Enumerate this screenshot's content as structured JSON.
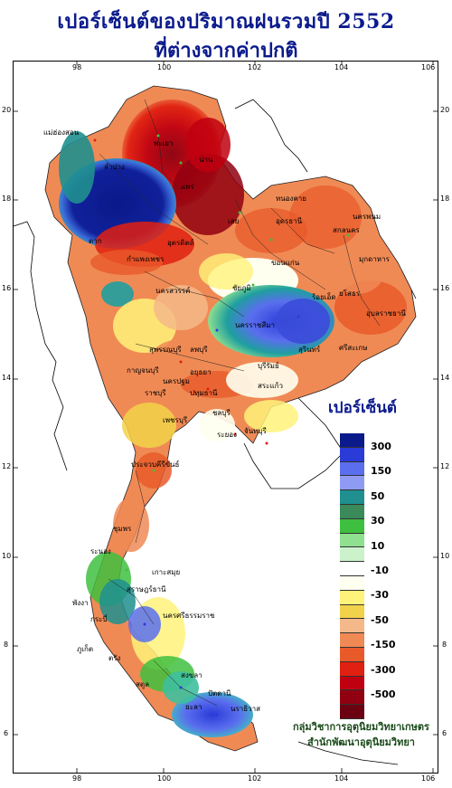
{
  "title_line1": "เปอร์เซ็นต์ของปริมาณฝนรวมปี 2552",
  "title_line2": "ที่ต่างจากค่าปกติ",
  "legend": {
    "title": "เปอร์เซ็นต์",
    "classes": [
      {
        "color": "#0a1a8a"
      },
      {
        "color": "#2a3bd8"
      },
      {
        "color": "#5a6eee"
      },
      {
        "color": "#8f9bf2"
      },
      {
        "color": "#1f8f8f"
      },
      {
        "color": "#3a8a5a"
      },
      {
        "color": "#3fbf3f"
      },
      {
        "color": "#8fe08f"
      },
      {
        "color": "#ccf2cc"
      },
      {
        "color": "#ffffff"
      },
      {
        "color": "#fffff0"
      },
      {
        "color": "#fff27a"
      },
      {
        "color": "#f2d24a"
      },
      {
        "color": "#f5b88a"
      },
      {
        "color": "#f08a55"
      },
      {
        "color": "#e85a2a"
      },
      {
        "color": "#e02010"
      },
      {
        "color": "#c00010"
      },
      {
        "color": "#900010"
      },
      {
        "color": "#6a0010"
      }
    ],
    "labels": [
      "300",
      "150",
      "50",
      "30",
      "10",
      "-10",
      "-30",
      "-50",
      "-150",
      "-300",
      "-500"
    ]
  },
  "axis": {
    "top": [
      "98",
      "100",
      "102",
      "104",
      "106"
    ],
    "bottom": [
      "98",
      "100",
      "102",
      "104",
      "106"
    ],
    "left": [
      "20",
      "18",
      "16",
      "14",
      "12",
      "10",
      "8",
      "6"
    ],
    "right": [
      "20",
      "18",
      "16",
      "14",
      "12",
      "10",
      "8",
      "6"
    ]
  },
  "credit": {
    "line1": "กลุ่มวิชาการอุตุนิยมวิทยาเกษตร",
    "line2": "สำนักพัฒนาอุตุนิยมวิทยา"
  },
  "places": [
    "แม่ฮ่องสอน",
    "น่าน",
    "พะเยา",
    "ลำปาง",
    "แพร่",
    "หนองคาย",
    "อุดรธานี",
    "สกลนคร",
    "นครพนม",
    "มุกดาหาร",
    "ขอนแก่น",
    "ชัยภูมิ",
    "นครราชสีมา",
    "อุบลราชธานี",
    "อุตรดิตถ์",
    "กำแพงเพชร",
    "ตาก",
    "นครสวรรค์",
    "กาญจนบุรี",
    "สุพรรณบุรี",
    "ราชบุรี",
    "ชลบุรี",
    "ระยอง",
    "จันทบุรี",
    "ประจวบคีรีขันธ์",
    "ชุมพร",
    "ระนอง",
    "เกาะสมุย",
    "สุราษฎร์ธานี",
    "พังงา",
    "ภูเก็ต",
    "กระบี่",
    "นครศรีธรรมราช",
    "ตรัง",
    "สตูล",
    "สงขลา",
    "ปัตตานี",
    "ยะลา",
    "นราธิวาส",
    "เพชรบุรี",
    "เลย",
    "บุรีรัมย์",
    "สุรินทร์",
    "ศรีสะเกษ",
    "ร้อยเอ็ด",
    "ยโสธร",
    "สระแก้ว",
    "ลพบุรี",
    "อยุธยา",
    "ปทุมธานี",
    "นครปฐม"
  ]
}
